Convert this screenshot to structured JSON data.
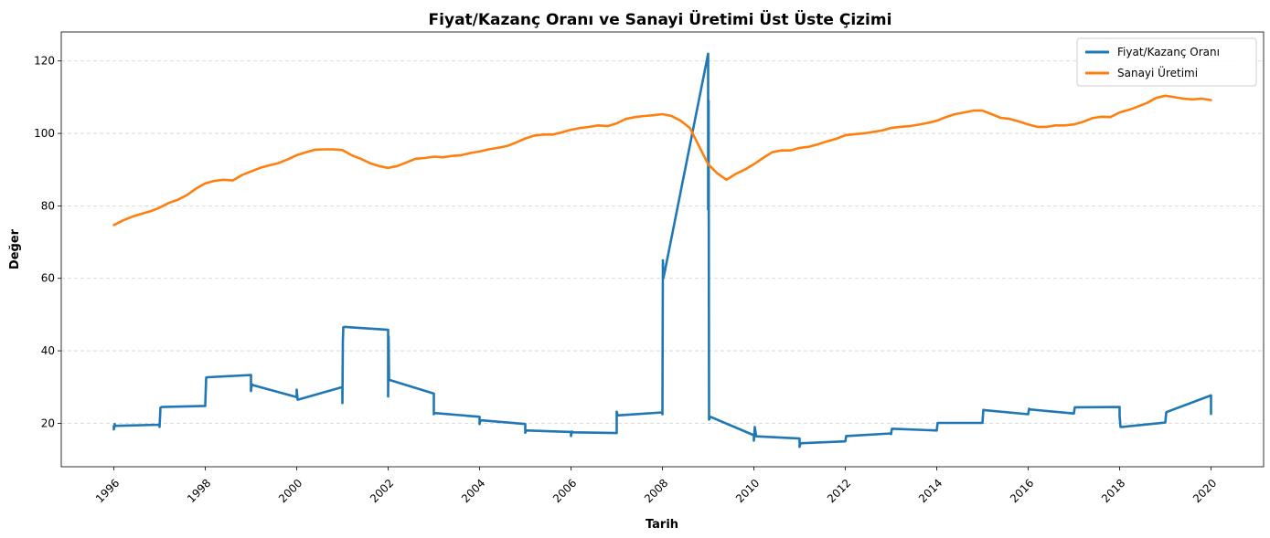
{
  "chart_data": {
    "type": "line",
    "title": "Fiyat/Kazanç Oranı ve Sanayi Üretimi Üst Üste Çizimi",
    "xlabel": "Tarih",
    "ylabel": "Değer",
    "xlim": [
      1994.85,
      2021.15
    ],
    "ylim": [
      8,
      128
    ],
    "xticks": [
      1996,
      1998,
      2000,
      2002,
      2004,
      2006,
      2008,
      2010,
      2012,
      2014,
      2016,
      2018,
      2020
    ],
    "xtick_labels": [
      "1996",
      "1998",
      "2000",
      "2002",
      "2004",
      "2006",
      "2008",
      "2010",
      "2012",
      "2014",
      "2016",
      "2018",
      "2020"
    ],
    "yticks": [
      20,
      40,
      60,
      80,
      100,
      120
    ],
    "ytick_labels": [
      "20",
      "40",
      "60",
      "80",
      "100",
      "120"
    ],
    "grid": "y-dashed",
    "legend_position": "top-right",
    "series": [
      {
        "name": "Fiyat/Kazanç Oranı",
        "color": "#1f77b4",
        "x": [
          1996.0,
          1996.0,
          1996.02,
          1996.02,
          1996.05,
          1997.0,
          1997.0,
          1997.02,
          1997.05,
          1998.0,
          1998.0,
          1998.02,
          1998.05,
          1999.0,
          1999.0,
          1999.02,
          1999.05,
          2000.0,
          2000.0,
          2000.02,
          2000.05,
          2001.0,
          2001.0,
          2001.01,
          2001.02,
          2001.05,
          2002.0,
          2002.0,
          2002.01,
          2002.02,
          2002.05,
          2003.0,
          2003.0,
          2003.02,
          2003.05,
          2004.0,
          2004.0,
          2004.02,
          2004.05,
          2005.0,
          2005.0,
          2005.02,
          2005.05,
          2006.0,
          2006.0,
          2006.02,
          2006.05,
          2007.0,
          2007.0,
          2007.02,
          2007.05,
          2008.0,
          2008.0,
          2008.01,
          2008.02,
          2008.05,
          2009.0,
          2009.0,
          2009.01,
          2009.02,
          2009.05,
          2010.0,
          2010.0,
          2010.02,
          2010.05,
          2011.0,
          2011.0,
          2011.02,
          2011.05,
          2012.0,
          2012.0,
          2012.02,
          2012.05,
          2013.0,
          2013.0,
          2013.02,
          2013.05,
          2014.0,
          2014.0,
          2014.02,
          2014.05,
          2015.0,
          2015.0,
          2015.02,
          2015.05,
          2016.0,
          2016.0,
          2016.02,
          2016.05,
          2017.0,
          2017.0,
          2017.02,
          2017.05,
          2018.0,
          2018.0,
          2018.02,
          2018.05,
          2019.0,
          2019.0,
          2019.02,
          2019.05,
          2020.0,
          2020.0
        ],
        "values": [
          19.2,
          18.3,
          19.8,
          19.2,
          19.3,
          19.6,
          19.0,
          24.3,
          24.5,
          24.8,
          25.2,
          32.6,
          32.7,
          33.3,
          28.9,
          30.8,
          30.5,
          27.2,
          29.3,
          26.5,
          26.6,
          30.0,
          25.6,
          42.9,
          46.5,
          46.6,
          45.8,
          27.4,
          44.0,
          32.0,
          31.9,
          28.2,
          22.5,
          22.8,
          22.8,
          21.8,
          19.8,
          20.8,
          20.8,
          19.8,
          17.4,
          18.0,
          18.0,
          17.6,
          16.5,
          17.7,
          17.5,
          17.3,
          23.2,
          22.2,
          22.2,
          23.0,
          22.5,
          65.0,
          60.0,
          61.8,
          122.0,
          79.0,
          109.0,
          21.0,
          21.8,
          16.7,
          15.2,
          19.0,
          16.4,
          15.8,
          13.5,
          14.5,
          14.5,
          15.0,
          15.0,
          16.5,
          16.5,
          17.2,
          17.0,
          18.5,
          18.5,
          18.0,
          18.0,
          20.1,
          20.1,
          20.1,
          20.1,
          23.7,
          23.6,
          22.5,
          22.5,
          24.0,
          23.8,
          22.7,
          22.7,
          24.4,
          24.4,
          24.5,
          22.0,
          19.0,
          19.0,
          20.2,
          20.2,
          23.0,
          23.2,
          27.7,
          22.6
        ]
      },
      {
        "name": "Sanayi Üretimi",
        "color": "#ff7f0e",
        "x": [
          1996.0,
          1996.2,
          1996.4,
          1996.6,
          1996.8,
          1997.0,
          1997.2,
          1997.4,
          1997.6,
          1997.8,
          1998.0,
          1998.2,
          1998.4,
          1998.6,
          1998.8,
          1999.0,
          1999.2,
          1999.4,
          1999.6,
          1999.8,
          2000.0,
          2000.2,
          2000.4,
          2000.6,
          2000.8,
          2001.0,
          2001.2,
          2001.4,
          2001.6,
          2001.8,
          2002.0,
          2002.2,
          2002.4,
          2002.6,
          2002.8,
          2003.0,
          2003.2,
          2003.4,
          2003.6,
          2003.8,
          2004.0,
          2004.2,
          2004.4,
          2004.6,
          2004.8,
          2005.0,
          2005.2,
          2005.4,
          2005.6,
          2005.8,
          2006.0,
          2006.2,
          2006.4,
          2006.6,
          2006.8,
          2007.0,
          2007.2,
          2007.4,
          2007.6,
          2007.8,
          2008.0,
          2008.2,
          2008.4,
          2008.6,
          2008.8,
          2009.0,
          2009.2,
          2009.4,
          2009.6,
          2009.8,
          2010.0,
          2010.2,
          2010.4,
          2010.6,
          2010.8,
          2011.0,
          2011.2,
          2011.4,
          2011.6,
          2011.8,
          2012.0,
          2012.2,
          2012.4,
          2012.6,
          2012.8,
          2013.0,
          2013.2,
          2013.4,
          2013.6,
          2013.8,
          2014.0,
          2014.2,
          2014.4,
          2014.6,
          2014.8,
          2015.0,
          2015.2,
          2015.4,
          2015.6,
          2015.8,
          2016.0,
          2016.2,
          2016.4,
          2016.6,
          2016.8,
          2017.0,
          2017.2,
          2017.4,
          2017.6,
          2017.8,
          2018.0,
          2018.2,
          2018.4,
          2018.6,
          2018.8,
          2019.0,
          2019.2,
          2019.4,
          2019.6,
          2019.8,
          2020.0
        ],
        "values": [
          74.7,
          76.0,
          77.0,
          77.8,
          78.5,
          79.5,
          80.8,
          81.7,
          83.0,
          84.8,
          86.2,
          86.9,
          87.2,
          87.0,
          88.5,
          89.5,
          90.5,
          91.2,
          91.8,
          92.8,
          94.0,
          94.8,
          95.5,
          95.6,
          95.6,
          95.4,
          94.0,
          93.0,
          91.8,
          91.0,
          90.5,
          91.0,
          92.0,
          93.0,
          93.2,
          93.6,
          93.4,
          93.8,
          94.0,
          94.6,
          95.0,
          95.6,
          96.0,
          96.5,
          97.5,
          98.6,
          99.4,
          99.7,
          99.7,
          100.3,
          101.0,
          101.5,
          101.8,
          102.2,
          102.0,
          102.8,
          104.0,
          104.5,
          104.8,
          105.0,
          105.3,
          104.8,
          103.5,
          101.5,
          96.5,
          91.5,
          89.0,
          87.2,
          88.8,
          90.0,
          91.5,
          93.2,
          94.8,
          95.3,
          95.3,
          96.0,
          96.3,
          97.0,
          97.8,
          98.5,
          99.5,
          99.8,
          100.0,
          100.4,
          100.8,
          101.5,
          101.8,
          102.0,
          102.4,
          102.9,
          103.5,
          104.5,
          105.3,
          105.8,
          106.3,
          106.3,
          105.3,
          104.3,
          104.0,
          103.3,
          102.5,
          101.8,
          101.8,
          102.2,
          102.2,
          102.5,
          103.2,
          104.2,
          104.6,
          104.5,
          105.8,
          106.5,
          107.4,
          108.4,
          109.8,
          110.4,
          110.0,
          109.6,
          109.4,
          109.6,
          109.2
        ]
      }
    ]
  }
}
